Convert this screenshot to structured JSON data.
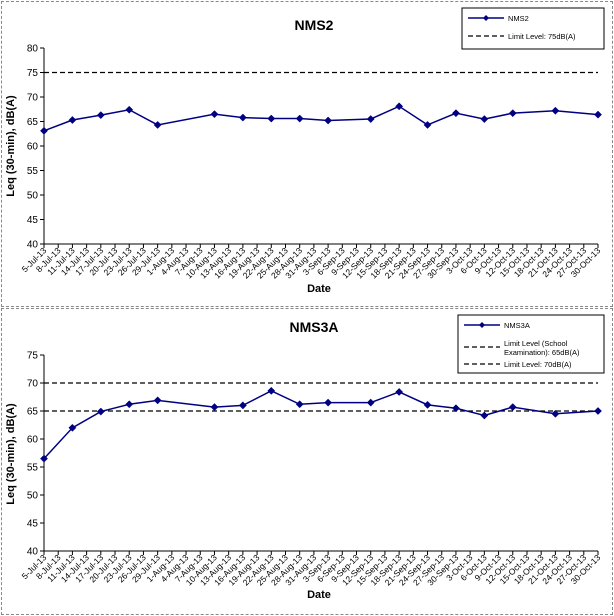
{
  "chart_data": [
    {
      "type": "line",
      "title": "NMS2",
      "xlabel": "Date",
      "ylabel": "Leq (30-min), dB(A)",
      "ylim": [
        40,
        80
      ],
      "yticks": [
        40,
        45,
        50,
        55,
        60,
        65,
        70,
        75,
        80
      ],
      "categories": [
        "5-Jul-13",
        "8-Jul-13",
        "11-Jul-13",
        "14-Jul-13",
        "17-Jul-13",
        "20-Jul-13",
        "23-Jul-13",
        "26-Jul-13",
        "29-Jul-13",
        "1-Aug-13",
        "4-Aug-13",
        "7-Aug-13",
        "10-Aug-13",
        "13-Aug-13",
        "16-Aug-13",
        "19-Aug-13",
        "22-Aug-13",
        "25-Aug-13",
        "28-Aug-13",
        "31-Aug-13",
        "3-Sep-13",
        "6-Sep-13",
        "9-Sep-13",
        "12-Sep-13",
        "15-Sep-13",
        "18-Sep-13",
        "21-Sep-13",
        "24-Sep-13",
        "27-Sep-13",
        "30-Sep-13",
        "3-Oct-13",
        "6-Oct-13",
        "9-Oct-13",
        "12-Oct-13",
        "15-Oct-13",
        "18-Oct-13",
        "21-Oct-13",
        "24-Oct-13",
        "27-Oct-13",
        "30-Oct-13"
      ],
      "series": [
        {
          "name": "NMS2",
          "color": "#000080",
          "x": [
            "5-Jul-13",
            "11-Jul-13",
            "17-Jul-13",
            "23-Jul-13",
            "29-Jul-13",
            "10-Aug-13",
            "16-Aug-13",
            "22-Aug-13",
            "28-Aug-13",
            "3-Sep-13",
            "12-Sep-13",
            "18-Sep-13",
            "24-Sep-13",
            "30-Sep-13",
            "6-Oct-13",
            "12-Oct-13",
            "21-Oct-13",
            "30-Oct-13"
          ],
          "values": [
            63.1,
            65.3,
            66.3,
            67.4,
            64.3,
            66.5,
            65.8,
            65.6,
            65.6,
            65.2,
            65.5,
            68.1,
            64.3,
            66.7,
            65.5,
            66.7,
            67.2,
            66.4
          ]
        }
      ],
      "limits": [
        {
          "name": "Limit Level:  75dB(A)",
          "value": 75,
          "color": "#000000"
        }
      ],
      "legend_position": "top-right"
    },
    {
      "type": "line",
      "title": "NMS3A",
      "xlabel": "Date",
      "ylabel": "Leq (30-min), dB(A)",
      "ylim": [
        40,
        75
      ],
      "yticks": [
        40,
        45,
        50,
        55,
        60,
        65,
        70,
        75
      ],
      "categories": [
        "5-Jul-13",
        "8-Jul-13",
        "11-Jul-13",
        "14-Jul-13",
        "17-Jul-13",
        "20-Jul-13",
        "23-Jul-13",
        "26-Jul-13",
        "29-Jul-13",
        "1-Aug-13",
        "4-Aug-13",
        "7-Aug-13",
        "10-Aug-13",
        "13-Aug-13",
        "16-Aug-13",
        "19-Aug-13",
        "22-Aug-13",
        "25-Aug-13",
        "28-Aug-13",
        "31-Aug-13",
        "3-Sep-13",
        "6-Sep-13",
        "9-Sep-13",
        "12-Sep-13",
        "15-Sep-13",
        "18-Sep-13",
        "21-Sep-13",
        "24-Sep-13",
        "27-Sep-13",
        "30-Sep-13",
        "3-Oct-13",
        "6-Oct-13",
        "9-Oct-13",
        "12-Oct-13",
        "15-Oct-13",
        "18-Oct-13",
        "21-Oct-13",
        "24-Oct-13",
        "27-Oct-13",
        "30-Oct-13"
      ],
      "series": [
        {
          "name": "NMS3A",
          "color": "#000080",
          "x": [
            "5-Jul-13",
            "11-Jul-13",
            "17-Jul-13",
            "23-Jul-13",
            "29-Jul-13",
            "10-Aug-13",
            "16-Aug-13",
            "22-Aug-13",
            "28-Aug-13",
            "3-Sep-13",
            "12-Sep-13",
            "18-Sep-13",
            "24-Sep-13",
            "30-Sep-13",
            "6-Oct-13",
            "12-Oct-13",
            "21-Oct-13",
            "30-Oct-13"
          ],
          "values": [
            56.5,
            62.0,
            64.9,
            66.2,
            66.9,
            65.7,
            66.0,
            68.6,
            66.2,
            66.5,
            66.5,
            68.4,
            66.1,
            65.5,
            64.2,
            65.7,
            64.5,
            65.0
          ]
        }
      ],
      "limits": [
        {
          "name": "Limit Level (School Examination):  65dB(A)",
          "value": 65,
          "color": "#000000"
        },
        {
          "name": "Limit Level:  70dB(A)",
          "value": 70,
          "color": "#000000"
        }
      ],
      "legend_position": "top-right"
    }
  ]
}
